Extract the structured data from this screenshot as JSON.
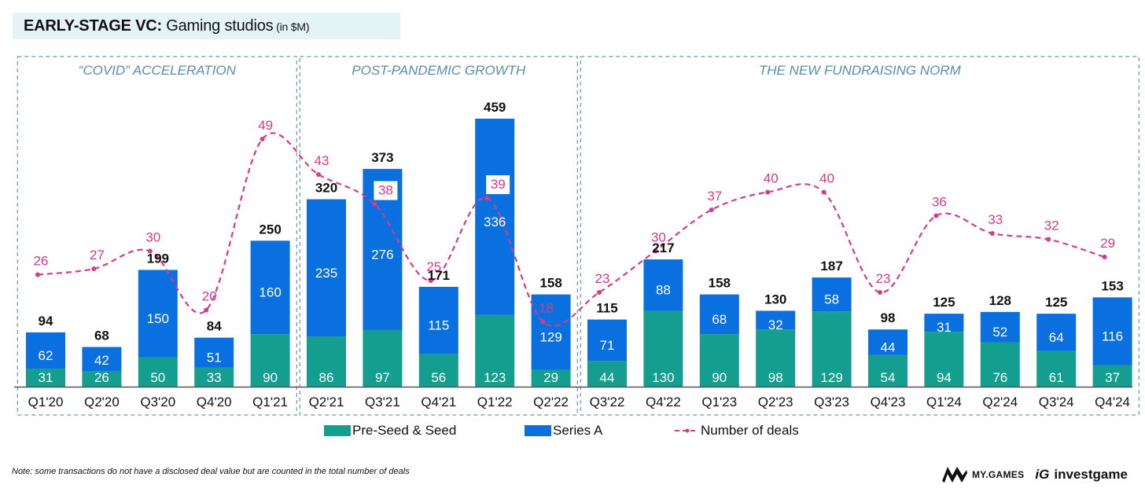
{
  "header": {
    "title_bold": "EARLY-STAGE VC:",
    "title_regular": " Gaming studios",
    "title_unit": " (in $M)"
  },
  "colors": {
    "seed": "#139e8f",
    "series_a": "#0a6fdf",
    "deals": "#d63a8a",
    "section_border": "#6d99ad",
    "section_label": "#5a8fa6",
    "title_bg": "#e4f3f6"
  },
  "chart_data": {
    "type": "bar",
    "stacked": true,
    "title": "EARLY-STAGE VC: Gaming studios (in $M)",
    "xlabel": "",
    "ylabel": "",
    "categories": [
      "Q1'20",
      "Q2'20",
      "Q3'20",
      "Q4'20",
      "Q1'21",
      "Q2'21",
      "Q3'21",
      "Q4'21",
      "Q1'22",
      "Q2'22",
      "Q3'22",
      "Q4'22",
      "Q1'23",
      "Q2'23",
      "Q3'23",
      "Q4'23",
      "Q1'24",
      "Q2'24",
      "Q3'24",
      "Q4'24"
    ],
    "series": [
      {
        "name": "Pre-Seed & Seed",
        "type": "bar",
        "values": [
          31,
          26,
          50,
          33,
          90,
          86,
          97,
          56,
          123,
          29,
          44,
          130,
          90,
          98,
          129,
          54,
          94,
          76,
          61,
          37
        ]
      },
      {
        "name": "Series A",
        "type": "bar",
        "values": [
          62,
          42,
          150,
          51,
          160,
          235,
          276,
          115,
          336,
          129,
          71,
          88,
          68,
          32,
          58,
          44,
          31,
          52,
          64,
          116
        ]
      },
      {
        "name": "Number of deals",
        "type": "line",
        "style": "dashed",
        "axis": "secondary",
        "values": [
          26,
          27,
          30,
          20,
          49,
          43,
          38,
          25,
          39,
          18,
          23,
          30,
          37,
          40,
          40,
          23,
          36,
          33,
          32,
          29
        ]
      }
    ],
    "totals": [
      94,
      68,
      199,
      84,
      250,
      320,
      373,
      171,
      459,
      158,
      115,
      217,
      158,
      130,
      187,
      98,
      125,
      128,
      125,
      153
    ],
    "sections": [
      {
        "label": "“COVID” ACCELERATION",
        "from": "Q1'20",
        "to": "Q1'21"
      },
      {
        "label": "POST-PANDEMIC GROWTH",
        "from": "Q2'21",
        "to": "Q2'22"
      },
      {
        "label": "THE NEW FUNDRAISING NORM",
        "from": "Q3'22",
        "to": "Q4'24"
      }
    ],
    "highlighted_deal_labels": [
      "Q3'21",
      "Q1'22"
    ],
    "ylim": [
      0,
      459
    ],
    "grid": false,
    "legend": {
      "position": "bottom",
      "entries": [
        "Pre-Seed & Seed",
        "Series A",
        "Number of deals"
      ]
    }
  },
  "footer": {
    "note": "Note: some transactions do not have a disclosed deal value but are counted in the total number of deals",
    "logo_mygames": "MY.GAMES",
    "logo_investgame_mark": "iG",
    "logo_investgame": "investgame"
  }
}
